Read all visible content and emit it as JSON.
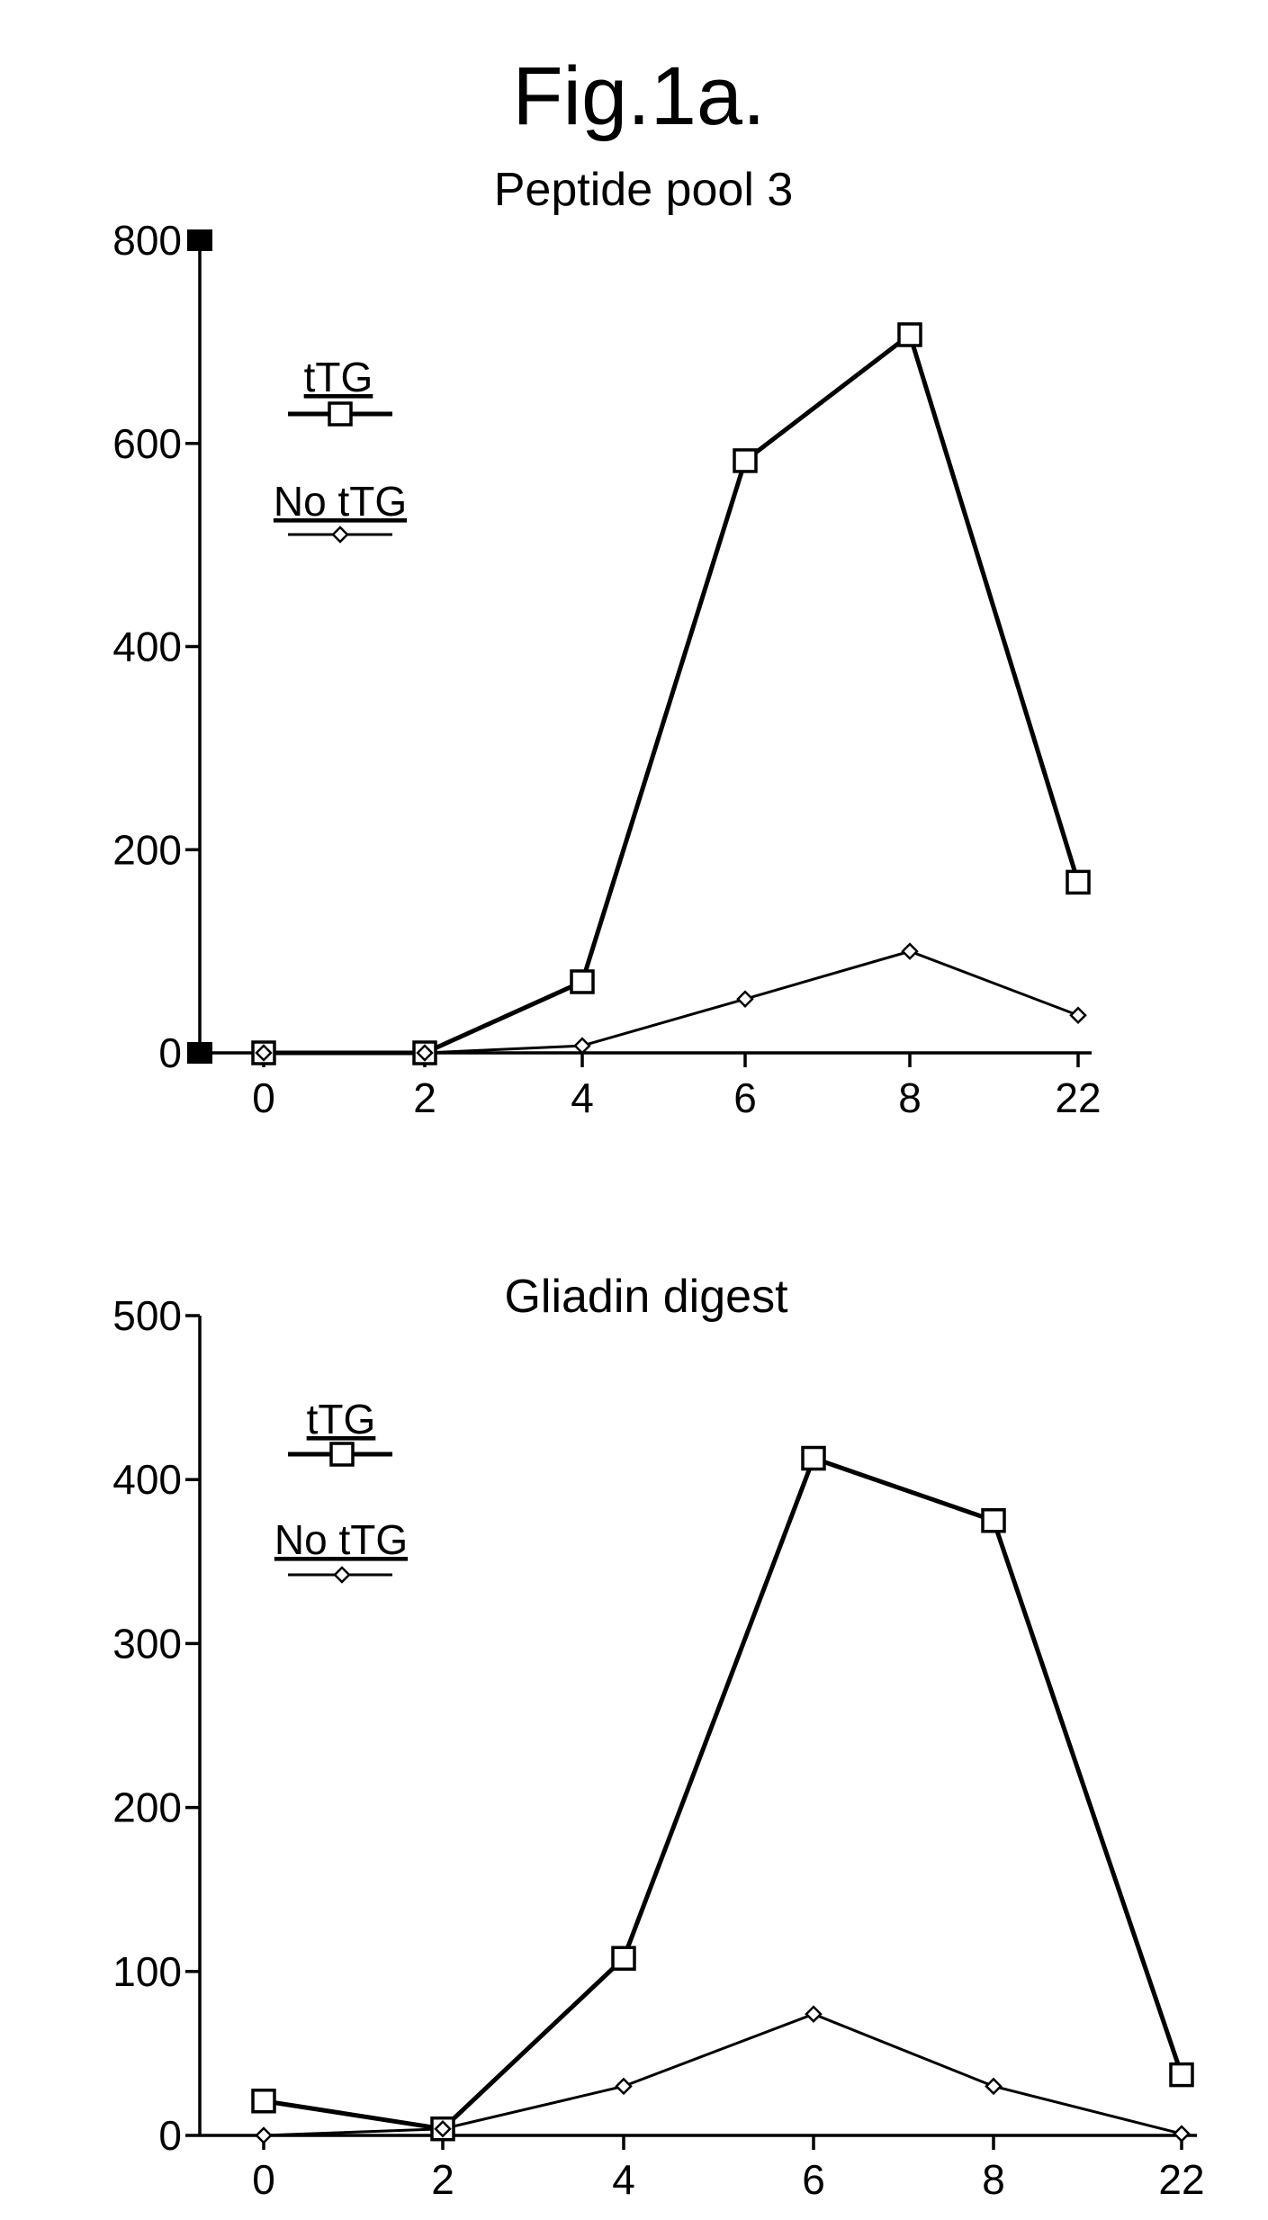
{
  "figure": {
    "title": "Fig.1a."
  },
  "chart_data": [
    {
      "type": "line",
      "title": "Peptide pool 3",
      "xlabel": "",
      "ylabel": "",
      "categories": [
        "0",
        "2",
        "4",
        "6",
        "8",
        "22"
      ],
      "yticks": [
        0,
        200,
        400,
        600,
        800
      ],
      "ylim": [
        0,
        800
      ],
      "grid": false,
      "legend_position": "top-left",
      "series": [
        {
          "name": "tTG",
          "marker": "square",
          "values": [
            0,
            0,
            70,
            583,
            707,
            168
          ]
        },
        {
          "name": "No tTG",
          "marker": "diamond",
          "values": [
            0,
            0,
            7,
            53,
            100,
            37
          ]
        }
      ]
    },
    {
      "type": "line",
      "title": "Gliadin digest",
      "xlabel": "",
      "ylabel": "",
      "categories": [
        "0",
        "2",
        "4",
        "6",
        "8",
        "22"
      ],
      "yticks": [
        0,
        100,
        200,
        300,
        400,
        500
      ],
      "ylim": [
        0,
        500
      ],
      "grid": false,
      "legend_position": "top-left",
      "series": [
        {
          "name": "tTG",
          "marker": "square",
          "values": [
            21,
            4,
            108,
            413,
            375,
            37
          ]
        },
        {
          "name": "No tTG",
          "marker": "diamond",
          "values": [
            0,
            4,
            30,
            74,
            30,
            1
          ]
        }
      ]
    }
  ]
}
